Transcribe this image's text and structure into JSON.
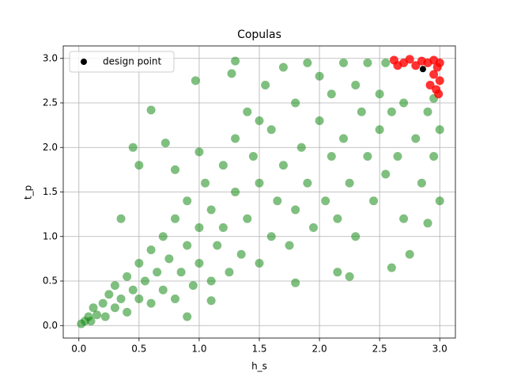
{
  "chart_data": {
    "type": "scatter",
    "title": "Copulas",
    "x_label": "h_s",
    "y_label": "t_p",
    "xlim": [
      -0.13,
      3.13
    ],
    "ylim": [
      -0.14,
      3.14
    ],
    "xticks": [
      {
        "value": 0,
        "label": "0.0"
      },
      {
        "value": 0.5,
        "label": "0.5"
      },
      {
        "value": 1,
        "label": "1.0"
      },
      {
        "value": 1.5,
        "label": "1.5"
      },
      {
        "value": 2,
        "label": "2.0"
      },
      {
        "value": 2.5,
        "label": "2.5"
      },
      {
        "value": 3,
        "label": "3.0"
      }
    ],
    "yticks": [
      {
        "value": 0,
        "label": "0.0"
      },
      {
        "value": 0.5,
        "label": "0.5"
      },
      {
        "value": 1,
        "label": "1.0"
      },
      {
        "value": 1.5,
        "label": "1.5"
      },
      {
        "value": 2,
        "label": "2.0"
      },
      {
        "value": 2.5,
        "label": "2.5"
      },
      {
        "value": 3,
        "label": "3.0"
      }
    ],
    "grid": true,
    "legend": "upper left",
    "series": [
      {
        "color": "#008000",
        "alpha": 0.5,
        "x": [
          0.02,
          0.05,
          0.08,
          0.1,
          0.12,
          0.15,
          0.2,
          0.22,
          0.25,
          0.3,
          0.3,
          0.35,
          0.4,
          0.4,
          0.45,
          0.5,
          0.5,
          0.55,
          0.6,
          0.6,
          0.65,
          0.7,
          0.7,
          0.75,
          0.8,
          0.8,
          0.85,
          0.9,
          0.9,
          0.95,
          1.0,
          1.0,
          1.05,
          1.1,
          1.1,
          1.15,
          1.2,
          1.2,
          1.25,
          1.3,
          1.3,
          1.35,
          1.4,
          1.4,
          1.45,
          1.5,
          1.5,
          1.55,
          1.6,
          1.6,
          1.65,
          1.7,
          1.7,
          1.75,
          1.8,
          1.8,
          1.85,
          1.9,
          1.9,
          1.95,
          2.0,
          2.0,
          2.05,
          2.1,
          2.1,
          2.15,
          2.2,
          2.2,
          2.25,
          2.3,
          2.3,
          2.35,
          2.4,
          2.4,
          2.45,
          2.5,
          2.5,
          2.55,
          2.6,
          2.6,
          2.65,
          2.7,
          2.7,
          2.75,
          2.8,
          2.85,
          2.9,
          2.9,
          2.95,
          2.95,
          3.0,
          3.0,
          0.45,
          0.5,
          0.6,
          0.97,
          1.27,
          1.3,
          0.72,
          2.15,
          2.25,
          1.8,
          0.9,
          1.1,
          0.35,
          2.55,
          1.5,
          1.0,
          0.8
        ],
        "values": [
          0.02,
          0.05,
          0.1,
          0.05,
          0.2,
          0.12,
          0.25,
          0.1,
          0.35,
          0.2,
          0.45,
          0.3,
          0.15,
          0.55,
          0.4,
          0.3,
          0.7,
          0.5,
          0.25,
          0.85,
          0.6,
          0.4,
          1.0,
          0.75,
          0.3,
          1.2,
          0.6,
          0.9,
          1.4,
          0.45,
          1.1,
          0.7,
          1.6,
          0.5,
          1.3,
          0.9,
          1.8,
          1.1,
          0.6,
          1.5,
          2.1,
          0.8,
          1.2,
          2.4,
          1.9,
          0.7,
          1.6,
          2.7,
          1.0,
          2.2,
          1.4,
          2.9,
          1.8,
          0.9,
          2.5,
          1.3,
          2.0,
          2.95,
          1.6,
          1.1,
          2.3,
          2.8,
          1.4,
          1.9,
          2.6,
          1.2,
          2.95,
          2.1,
          1.6,
          2.7,
          1.0,
          2.4,
          1.9,
          2.95,
          1.4,
          2.6,
          2.2,
          1.7,
          2.4,
          0.65,
          1.9,
          2.5,
          1.2,
          0.8,
          2.1,
          1.6,
          2.4,
          1.15,
          1.9,
          2.55,
          2.2,
          1.4,
          2.0,
          1.8,
          2.42,
          2.75,
          2.83,
          2.97,
          2.05,
          0.6,
          0.55,
          0.48,
          0.1,
          0.28,
          1.2,
          2.95,
          2.3,
          1.95,
          1.75
        ]
      },
      {
        "color": "#ff0000",
        "alpha": 0.8,
        "x": [
          2.62,
          2.7,
          2.75,
          2.8,
          2.85,
          2.9,
          2.95,
          2.98,
          3.0,
          2.95,
          3.0,
          2.97,
          2.65,
          2.92,
          2.99
        ],
        "values": [
          2.98,
          2.95,
          2.99,
          2.92,
          2.97,
          2.95,
          2.98,
          2.9,
          2.95,
          2.82,
          2.75,
          2.65,
          2.92,
          2.7,
          2.6
        ]
      },
      {
        "name": "design point",
        "color": "#000000",
        "alpha": 1,
        "x": [
          2.86
        ],
        "values": [
          2.88
        ]
      }
    ]
  }
}
